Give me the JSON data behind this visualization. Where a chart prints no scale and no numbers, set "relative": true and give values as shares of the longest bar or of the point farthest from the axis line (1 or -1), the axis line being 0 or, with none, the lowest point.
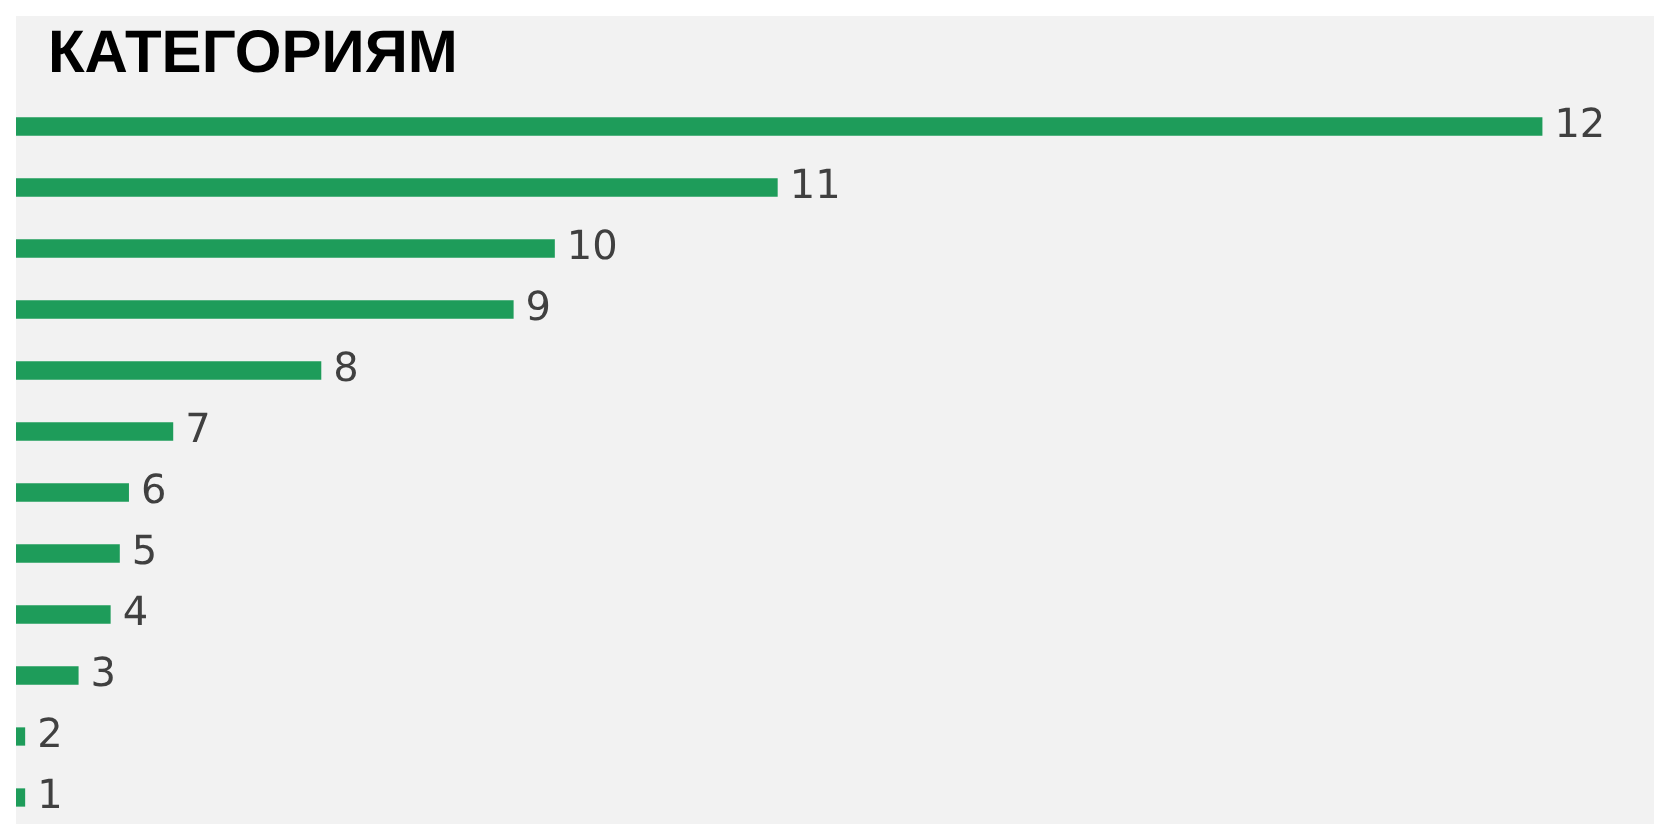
{
  "chart_data": {
    "type": "bar",
    "orientation": "horizontal",
    "relative": true,
    "title": "КАТЕГОРИЯМ",
    "categories": [
      "12",
      "11",
      "10",
      "9",
      "8",
      "7",
      "6",
      "5",
      "4",
      "3",
      "2",
      "1"
    ],
    "values": [
      1,
      0.499,
      0.353,
      0.326,
      0.2,
      0.103,
      0.074,
      0.068,
      0.062,
      0.041,
      0.006,
      0.006
    ],
    "color": "#1e9c5a"
  }
}
